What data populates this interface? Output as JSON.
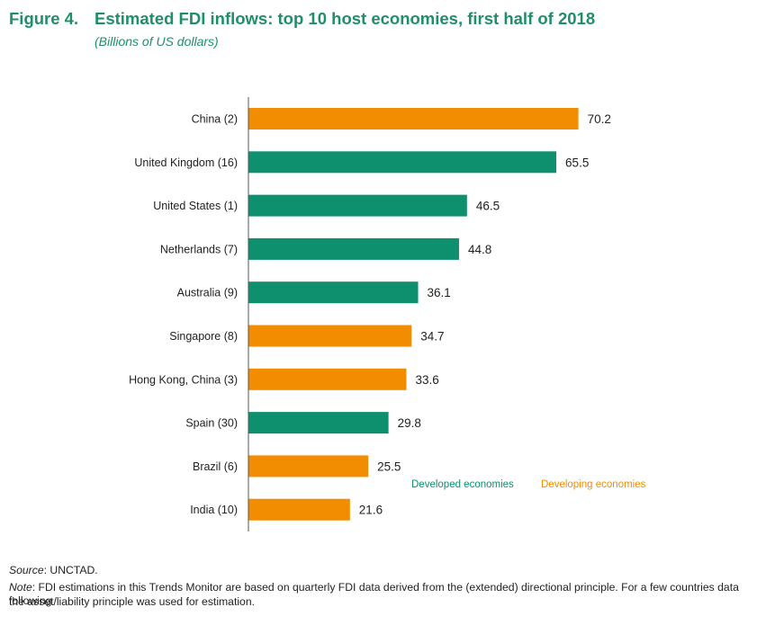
{
  "header": {
    "figure_label": "Figure 4.",
    "title": "Estimated FDI inflows: top 10 host economies, first half of 2018",
    "subtitle": "(Billions of US dollars)"
  },
  "chart_data": {
    "type": "bar",
    "orientation": "horizontal",
    "title": "Estimated FDI inflows: top 10 host economies, first half of 2018",
    "unit": "Billions of US dollars",
    "categories": [
      "China (2)",
      "United Kingdom (16)",
      "United States (1)",
      "Netherlands (7)",
      "Australia (9)",
      "Singapore (8)",
      "Hong Kong, China (3)",
      "Spain (30)",
      "Brazil (6)",
      "India (10)"
    ],
    "values": [
      70.2,
      65.5,
      46.5,
      44.8,
      36.1,
      34.7,
      33.6,
      29.8,
      25.5,
      21.6
    ],
    "value_labels": [
      "70.2",
      "65.5",
      "46.5",
      "44.8",
      "36.1",
      "34.7",
      "33.6",
      "29.8",
      "25.5",
      "21.6"
    ],
    "groups": [
      "developing",
      "developed",
      "developed",
      "developed",
      "developed",
      "developing",
      "developing",
      "developed",
      "developing",
      "developing"
    ],
    "xlim": [
      0,
      72
    ],
    "grid": false,
    "legend": {
      "placement": "bottom-right",
      "items": [
        {
          "key": "developed",
          "label": "Developed economies",
          "color": "#0e8f6e"
        },
        {
          "key": "developing",
          "label": "Developing economies",
          "color": "#f28c00"
        }
      ]
    }
  },
  "footer": {
    "source_label": "Source",
    "source_text": ": UNCTAD.",
    "note_label": "Note",
    "note_line1": ": FDI estimations in this Trends Monitor are based on quarterly FDI data derived from the (extended) directional principle. For a few countries data following",
    "note_line2": "the asset/liability principle was used for estimation."
  }
}
